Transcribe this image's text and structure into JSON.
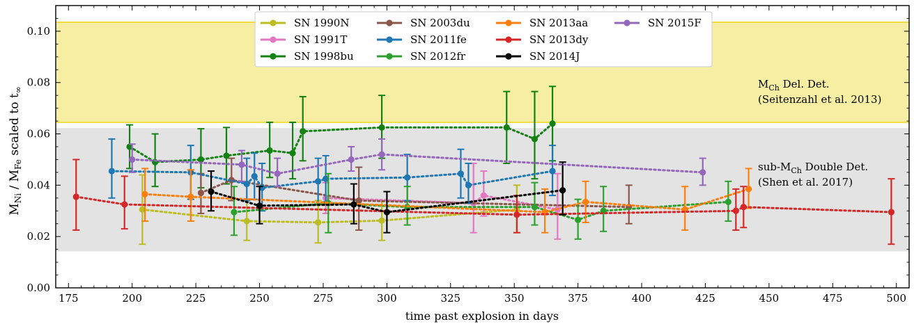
{
  "chart_data": {
    "type": "scatter",
    "xlabel": "time past explosion in days",
    "ylabel": {
      "main1": "M",
      "sub1": "Ni",
      "main2": " / M",
      "sub2": "Fe",
      "main3": " scaled to t",
      "sub3": "∞"
    },
    "xlim": [
      170,
      505
    ],
    "ylim": [
      0.0,
      0.11
    ],
    "xticks": [
      175,
      200,
      225,
      250,
      275,
      300,
      325,
      350,
      375,
      400,
      425,
      450,
      475,
      500
    ],
    "yticks": [
      0.0,
      0.02,
      0.04,
      0.06,
      0.08,
      0.1
    ],
    "ytick_labels": [
      "0.00",
      "0.02",
      "0.04",
      "0.06",
      "0.08",
      "0.10"
    ],
    "bands": [
      {
        "name": "mch",
        "y0": 0.0645,
        "y1": 0.1035,
        "fill": "#f6eea3",
        "edge": "#f0dc3c",
        "label_line1_a": "M",
        "label_line1_sub": "Ch",
        "label_line1_b": " Del. Det.",
        "label_line2": "(Seitenzahl et al. 2013)"
      },
      {
        "name": "submch",
        "y0": 0.0145,
        "y1": 0.062,
        "fill": "#e3e3e3",
        "edge": "#e3e3e3",
        "label_line1_a": "sub-M",
        "label_line1_sub": "Ch",
        "label_line1_b": " Double Det.",
        "label_line2": "(Shen et al. 2017)"
      }
    ],
    "series": [
      {
        "name": "SN 1990N",
        "color": "#bcbd22",
        "points": [
          {
            "x": 204,
            "y": 0.0305,
            "lo": 0.017,
            "hi": 0.044
          },
          {
            "x": 245,
            "y": 0.026,
            "lo": 0.0185,
            "hi": 0.034
          },
          {
            "x": 273,
            "y": 0.0255,
            "lo": 0.0175,
            "hi": 0.034
          },
          {
            "x": 298,
            "y": 0.0262,
            "lo": 0.0185,
            "hi": 0.034
          },
          {
            "x": 351,
            "y": 0.0305,
            "lo": 0.0215,
            "hi": 0.04
          }
        ]
      },
      {
        "name": "SN 1991T",
        "color": "#e377c2",
        "points": [
          {
            "x": 276,
            "y": 0.035,
            "lo": 0.029,
            "hi": 0.041
          },
          {
            "x": 334,
            "y": 0.033,
            "lo": 0.0215,
            "hi": 0.0485
          },
          {
            "x": 338,
            "y": 0.036,
            "lo": 0.028,
            "hi": 0.0455
          },
          {
            "x": 367,
            "y": 0.0305,
            "lo": 0.019,
            "hi": 0.0445
          }
        ]
      },
      {
        "name": "SN 1998bu",
        "color": "#138213",
        "points": [
          {
            "x": 199,
            "y": 0.055,
            "lo": 0.0465,
            "hi": 0.0635
          },
          {
            "x": 209,
            "y": 0.049,
            "lo": 0.0395,
            "hi": 0.06
          },
          {
            "x": 227,
            "y": 0.05,
            "lo": 0.039,
            "hi": 0.062
          },
          {
            "x": 237,
            "y": 0.0515,
            "lo": 0.0405,
            "hi": 0.0625
          },
          {
            "x": 254,
            "y": 0.0535,
            "lo": 0.043,
            "hi": 0.0645
          },
          {
            "x": 263,
            "y": 0.0525,
            "lo": 0.0425,
            "hi": 0.0645
          },
          {
            "x": 267,
            "y": 0.061,
            "lo": 0.0495,
            "hi": 0.0745
          },
          {
            "x": 298,
            "y": 0.0625,
            "lo": 0.0505,
            "hi": 0.075
          },
          {
            "x": 347,
            "y": 0.0625,
            "lo": 0.0485,
            "hi": 0.0765
          },
          {
            "x": 358,
            "y": 0.058,
            "lo": 0.0425,
            "hi": 0.0765
          },
          {
            "x": 365,
            "y": 0.064,
            "lo": 0.0495,
            "hi": 0.0785
          }
        ]
      },
      {
        "name": "SN 2003du",
        "color": "#8c564b",
        "points": [
          {
            "x": 227,
            "y": 0.037,
            "lo": 0.029,
            "hi": 0.0445
          },
          {
            "x": 239,
            "y": 0.042,
            "lo": 0.034,
            "hi": 0.0505
          },
          {
            "x": 289,
            "y": 0.034,
            "lo": 0.0225,
            "hi": 0.047
          },
          {
            "x": 395,
            "y": 0.0315,
            "lo": 0.025,
            "hi": 0.04
          }
        ]
      },
      {
        "name": "SN 2011fe",
        "color": "#1f77b4",
        "points": [
          {
            "x": 192,
            "y": 0.0455,
            "lo": 0.035,
            "hi": 0.058
          },
          {
            "x": 223,
            "y": 0.045,
            "lo": 0.0345,
            "hi": 0.0555
          },
          {
            "x": 245,
            "y": 0.0405,
            "lo": 0.034,
            "hi": 0.0505
          },
          {
            "x": 248,
            "y": 0.0435,
            "lo": 0.0345,
            "hi": 0.0525
          },
          {
            "x": 251,
            "y": 0.039,
            "lo": 0.03,
            "hi": 0.0485
          },
          {
            "x": 273,
            "y": 0.0415,
            "lo": 0.0325,
            "hi": 0.0505
          },
          {
            "x": 276,
            "y": 0.0425,
            "lo": 0.0335,
            "hi": 0.0515
          },
          {
            "x": 308,
            "y": 0.043,
            "lo": 0.034,
            "hi": 0.052
          },
          {
            "x": 329,
            "y": 0.0445,
            "lo": 0.035,
            "hi": 0.054
          },
          {
            "x": 332,
            "y": 0.04,
            "lo": 0.033,
            "hi": 0.0485
          },
          {
            "x": 365,
            "y": 0.0455,
            "lo": 0.036,
            "hi": 0.0555
          }
        ]
      },
      {
        "name": "SN 2012fr",
        "color": "#2ca02c",
        "points": [
          {
            "x": 240,
            "y": 0.0295,
            "lo": 0.0205,
            "hi": 0.0395
          },
          {
            "x": 277,
            "y": 0.033,
            "lo": 0.0215,
            "hi": 0.0445
          },
          {
            "x": 308,
            "y": 0.0315,
            "lo": 0.0245,
            "hi": 0.0395
          },
          {
            "x": 358,
            "y": 0.0315,
            "lo": 0.0245,
            "hi": 0.041
          },
          {
            "x": 375,
            "y": 0.0265,
            "lo": 0.019,
            "hi": 0.0345
          },
          {
            "x": 385,
            "y": 0.03,
            "lo": 0.022,
            "hi": 0.0395
          },
          {
            "x": 434,
            "y": 0.0335,
            "lo": 0.026,
            "hi": 0.0415
          }
        ]
      },
      {
        "name": "SN 2013aa",
        "color": "#ff7f0e",
        "points": [
          {
            "x": 205,
            "y": 0.0365,
            "lo": 0.026,
            "hi": 0.0465
          },
          {
            "x": 223,
            "y": 0.0355,
            "lo": 0.026,
            "hi": 0.046
          },
          {
            "x": 362,
            "y": 0.0295,
            "lo": 0.0215,
            "hi": 0.0385
          },
          {
            "x": 378,
            "y": 0.0335,
            "lo": 0.0255,
            "hi": 0.0415
          },
          {
            "x": 417,
            "y": 0.0305,
            "lo": 0.0225,
            "hi": 0.0395
          },
          {
            "x": 442,
            "y": 0.0385,
            "lo": 0.031,
            "hi": 0.0465
          }
        ]
      },
      {
        "name": "SN 2013dy",
        "color": "#d62728",
        "points": [
          {
            "x": 178,
            "y": 0.0355,
            "lo": 0.0225,
            "hi": 0.05
          },
          {
            "x": 197,
            "y": 0.0325,
            "lo": 0.023,
            "hi": 0.0435
          },
          {
            "x": 351,
            "y": 0.0285,
            "lo": 0.0215,
            "hi": 0.036
          },
          {
            "x": 437,
            "y": 0.03,
            "lo": 0.0225,
            "hi": 0.0385
          },
          {
            "x": 440,
            "y": 0.0315,
            "lo": 0.0235,
            "hi": 0.0395
          },
          {
            "x": 498,
            "y": 0.0295,
            "lo": 0.017,
            "hi": 0.0425
          }
        ]
      },
      {
        "name": "SN 2014J",
        "color": "#000000",
        "points": [
          {
            "x": 231,
            "y": 0.0375,
            "lo": 0.03,
            "hi": 0.0455
          },
          {
            "x": 250,
            "y": 0.032,
            "lo": 0.025,
            "hi": 0.0395
          },
          {
            "x": 287,
            "y": 0.0325,
            "lo": 0.025,
            "hi": 0.0405
          },
          {
            "x": 300,
            "y": 0.0295,
            "lo": 0.0215,
            "hi": 0.0375
          },
          {
            "x": 369,
            "y": 0.038,
            "lo": 0.0285,
            "hi": 0.049
          }
        ]
      },
      {
        "name": "SN 2015F",
        "color": "#9467bd",
        "points": [
          {
            "x": 200,
            "y": 0.05,
            "lo": 0.045,
            "hi": 0.056
          },
          {
            "x": 243,
            "y": 0.048,
            "lo": 0.0415,
            "hi": 0.0535
          },
          {
            "x": 257,
            "y": 0.0445,
            "lo": 0.0395,
            "hi": 0.0505
          },
          {
            "x": 286,
            "y": 0.05,
            "lo": 0.0455,
            "hi": 0.055
          },
          {
            "x": 298,
            "y": 0.052,
            "lo": 0.046,
            "hi": 0.058
          },
          {
            "x": 424,
            "y": 0.045,
            "lo": 0.04,
            "hi": 0.0505
          }
        ]
      }
    ],
    "legend": {
      "placement": "top-center",
      "order": [
        "SN 1990N",
        "SN 1991T",
        "SN 1998bu",
        "SN 2003du",
        "SN 2011fe",
        "SN 2012fr",
        "SN 2013aa",
        "SN 2013dy",
        "SN 2014J",
        "SN 2015F"
      ]
    },
    "grid": false
  }
}
